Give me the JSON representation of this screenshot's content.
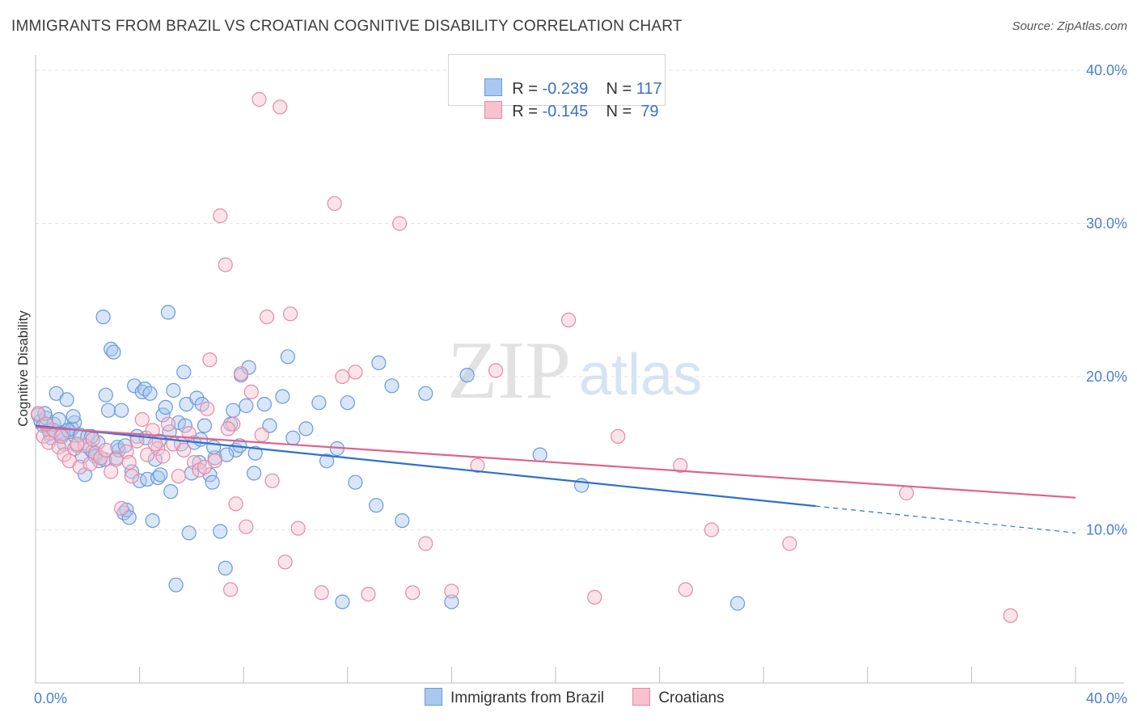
{
  "title": "IMMIGRANTS FROM BRAZIL VS CROATIAN COGNITIVE DISABILITY CORRELATION CHART",
  "source": "Source: ZipAtlas.com",
  "watermark": {
    "zip": "ZIP",
    "atlas": "atlas"
  },
  "legend": {
    "rows": [
      {
        "r_label": "R =",
        "r_value": "-0.239",
        "n_label": "N =",
        "n_value": "117",
        "color": "#a9c8f0",
        "border": "#6a9ad8"
      },
      {
        "r_label": "R =",
        "r_value": "-0.145",
        "n_label": "N =",
        "n_value": "79",
        "color": "#f7c1d0",
        "border": "#e28aa6"
      }
    ]
  },
  "bottom_legend": {
    "items": [
      "Immigrants from Brazil",
      "Croatians"
    ]
  },
  "chart_data": {
    "type": "scatter",
    "title": "IMMIGRANTS FROM BRAZIL VS CROATIAN COGNITIVE DISABILITY CORRELATION CHART",
    "xlabel": "",
    "ylabel": "Cognitive Disability",
    "xlim": [
      0,
      40
    ],
    "ylim": [
      0,
      41
    ],
    "x_tick_labels": [
      "0.0%",
      "40.0%"
    ],
    "y_tick_labels": [
      "10.0%",
      "20.0%",
      "30.0%",
      "40.0%"
    ],
    "y_ticks": [
      10,
      20,
      30,
      40
    ],
    "grid": true,
    "legend_position": "top-center",
    "series": [
      {
        "name": "Immigrants from Brazil",
        "color": "#6a9ad8",
        "fill": "#a9c8f0",
        "r": -0.239,
        "n": 117,
        "trend": {
          "x": [
            0,
            30,
            40
          ],
          "y": [
            16.8,
            11.5,
            9.8
          ],
          "solid_until": 30
        },
        "points": [
          [
            0.1,
            17.5
          ],
          [
            0.2,
            17.1
          ],
          [
            0.3,
            16.8
          ],
          [
            0.4,
            17.3
          ],
          [
            0.5,
            16.5
          ],
          [
            0.6,
            16.0
          ],
          [
            0.7,
            16.9
          ],
          [
            0.8,
            18.9
          ],
          [
            0.9,
            17.2
          ],
          [
            1.0,
            16.2
          ],
          [
            1.1,
            15.6
          ],
          [
            1.2,
            18.5
          ],
          [
            1.3,
            16.4
          ],
          [
            1.4,
            16.6
          ],
          [
            1.5,
            17.0
          ],
          [
            1.6,
            15.5
          ],
          [
            1.7,
            16.2
          ],
          [
            1.8,
            14.8
          ],
          [
            1.9,
            13.6
          ],
          [
            2.0,
            16.1
          ],
          [
            2.1,
            15.3
          ],
          [
            2.2,
            15.1
          ],
          [
            2.3,
            14.8
          ],
          [
            2.4,
            15.7
          ],
          [
            2.6,
            23.9
          ],
          [
            2.7,
            18.8
          ],
          [
            2.8,
            17.8
          ],
          [
            2.9,
            21.8
          ],
          [
            3.0,
            21.6
          ],
          [
            3.1,
            14.7
          ],
          [
            3.2,
            15.2
          ],
          [
            3.3,
            17.8
          ],
          [
            3.4,
            11.1
          ],
          [
            3.5,
            11.3
          ],
          [
            3.6,
            10.8
          ],
          [
            3.7,
            13.8
          ],
          [
            3.8,
            19.4
          ],
          [
            3.9,
            16.1
          ],
          [
            4.0,
            13.2
          ],
          [
            4.1,
            19.0
          ],
          [
            4.2,
            19.2
          ],
          [
            4.3,
            13.3
          ],
          [
            4.4,
            18.9
          ],
          [
            4.5,
            10.6
          ],
          [
            4.6,
            14.6
          ],
          [
            4.7,
            13.4
          ],
          [
            4.8,
            13.6
          ],
          [
            4.9,
            17.5
          ],
          [
            5.0,
            18.0
          ],
          [
            5.1,
            24.2
          ],
          [
            5.2,
            12.5
          ],
          [
            5.3,
            19.1
          ],
          [
            5.4,
            6.4
          ],
          [
            5.5,
            17.0
          ],
          [
            5.6,
            15.6
          ],
          [
            5.7,
            20.3
          ],
          [
            5.8,
            18.2
          ],
          [
            5.9,
            9.8
          ],
          [
            6.0,
            13.7
          ],
          [
            6.1,
            15.7
          ],
          [
            6.2,
            18.6
          ],
          [
            6.3,
            14.4
          ],
          [
            6.4,
            18.2
          ],
          [
            6.5,
            16.8
          ],
          [
            6.7,
            13.6
          ],
          [
            6.8,
            13.1
          ],
          [
            6.9,
            14.7
          ],
          [
            7.1,
            9.9
          ],
          [
            7.3,
            7.5
          ],
          [
            7.5,
            16.9
          ],
          [
            7.6,
            17.8
          ],
          [
            7.7,
            15.2
          ],
          [
            7.9,
            20.1
          ],
          [
            8.1,
            18.1
          ],
          [
            8.2,
            20.6
          ],
          [
            8.4,
            13.7
          ],
          [
            8.8,
            18.2
          ],
          [
            9.0,
            16.8
          ],
          [
            9.5,
            18.7
          ],
          [
            9.7,
            21.3
          ],
          [
            9.9,
            16.0
          ],
          [
            10.4,
            16.6
          ],
          [
            10.9,
            18.3
          ],
          [
            11.2,
            14.5
          ],
          [
            11.6,
            15.3
          ],
          [
            11.8,
            5.3
          ],
          [
            12.0,
            18.3
          ],
          [
            12.3,
            13.1
          ],
          [
            13.1,
            11.6
          ],
          [
            13.2,
            20.9
          ],
          [
            13.7,
            19.4
          ],
          [
            14.1,
            10.6
          ],
          [
            15.0,
            18.9
          ],
          [
            16.0,
            5.3
          ],
          [
            16.6,
            20.1
          ],
          [
            19.4,
            14.9
          ],
          [
            21.0,
            12.9
          ],
          [
            27.0,
            5.2
          ],
          [
            0.35,
            17.6
          ],
          [
            0.55,
            16.3
          ],
          [
            1.05,
            16.3
          ],
          [
            1.25,
            16.5
          ],
          [
            1.45,
            17.4
          ],
          [
            2.15,
            16.1
          ],
          [
            2.45,
            14.5
          ],
          [
            2.65,
            14.6
          ],
          [
            3.15,
            15.4
          ],
          [
            3.45,
            15.5
          ],
          [
            4.25,
            16.0
          ],
          [
            4.75,
            15.8
          ],
          [
            5.15,
            16.4
          ],
          [
            5.75,
            16.8
          ],
          [
            6.35,
            15.9
          ],
          [
            6.85,
            15.4
          ],
          [
            7.35,
            14.9
          ],
          [
            7.85,
            15.5
          ],
          [
            8.45,
            15.0
          ]
        ]
      },
      {
        "name": "Croatians",
        "color": "#e28aa6",
        "fill": "#f7c1d0",
        "r": -0.145,
        "n": 79,
        "trend": {
          "x": [
            0,
            40
          ],
          "y": [
            16.7,
            12.1
          ]
        },
        "points": [
          [
            0.1,
            17.6
          ],
          [
            0.3,
            16.1
          ],
          [
            0.5,
            15.7
          ],
          [
            0.7,
            16.5
          ],
          [
            0.9,
            15.4
          ],
          [
            1.1,
            14.9
          ],
          [
            1.3,
            14.5
          ],
          [
            1.5,
            15.3
          ],
          [
            1.7,
            14.1
          ],
          [
            1.9,
            15.5
          ],
          [
            2.1,
            14.3
          ],
          [
            2.3,
            15.0
          ],
          [
            2.5,
            14.7
          ],
          [
            2.7,
            15.2
          ],
          [
            2.9,
            13.8
          ],
          [
            3.1,
            14.6
          ],
          [
            3.3,
            11.4
          ],
          [
            3.5,
            15.1
          ],
          [
            3.7,
            13.5
          ],
          [
            3.9,
            15.8
          ],
          [
            4.1,
            17.2
          ],
          [
            4.3,
            14.9
          ],
          [
            4.5,
            16.5
          ],
          [
            4.7,
            15.3
          ],
          [
            4.9,
            14.8
          ],
          [
            5.1,
            16.9
          ],
          [
            5.3,
            15.6
          ],
          [
            5.5,
            13.5
          ],
          [
            5.7,
            15.2
          ],
          [
            5.9,
            16.3
          ],
          [
            6.1,
            14.4
          ],
          [
            6.3,
            13.9
          ],
          [
            6.5,
            14.1
          ],
          [
            6.7,
            21.1
          ],
          [
            6.9,
            14.5
          ],
          [
            7.1,
            30.5
          ],
          [
            7.3,
            27.3
          ],
          [
            7.5,
            6.1
          ],
          [
            7.6,
            16.9
          ],
          [
            7.7,
            11.7
          ],
          [
            7.9,
            20.2
          ],
          [
            8.1,
            10.2
          ],
          [
            8.3,
            19.0
          ],
          [
            8.6,
            38.1
          ],
          [
            8.9,
            23.9
          ],
          [
            9.1,
            13.2
          ],
          [
            9.4,
            37.6
          ],
          [
            9.6,
            7.9
          ],
          [
            9.8,
            24.1
          ],
          [
            10.1,
            10.1
          ],
          [
            11.0,
            5.9
          ],
          [
            11.5,
            31.3
          ],
          [
            11.8,
            20.0
          ],
          [
            12.3,
            20.3
          ],
          [
            12.8,
            5.8
          ],
          [
            14.0,
            30.0
          ],
          [
            14.5,
            5.9
          ],
          [
            15.0,
            9.1
          ],
          [
            16.0,
            6.0
          ],
          [
            17.0,
            14.2
          ],
          [
            17.7,
            20.4
          ],
          [
            20.5,
            23.7
          ],
          [
            21.5,
            5.6
          ],
          [
            22.4,
            16.1
          ],
          [
            24.8,
            14.2
          ],
          [
            25.0,
            6.1
          ],
          [
            26.0,
            10.0
          ],
          [
            29.0,
            9.1
          ],
          [
            33.5,
            12.4
          ],
          [
            37.5,
            4.4
          ],
          [
            0.4,
            16.9
          ],
          [
            1.0,
            16.1
          ],
          [
            1.6,
            15.6
          ],
          [
            2.2,
            15.9
          ],
          [
            3.6,
            14.4
          ],
          [
            4.6,
            15.6
          ],
          [
            6.6,
            17.9
          ],
          [
            7.4,
            16.6
          ],
          [
            8.7,
            16.2
          ]
        ]
      }
    ]
  }
}
